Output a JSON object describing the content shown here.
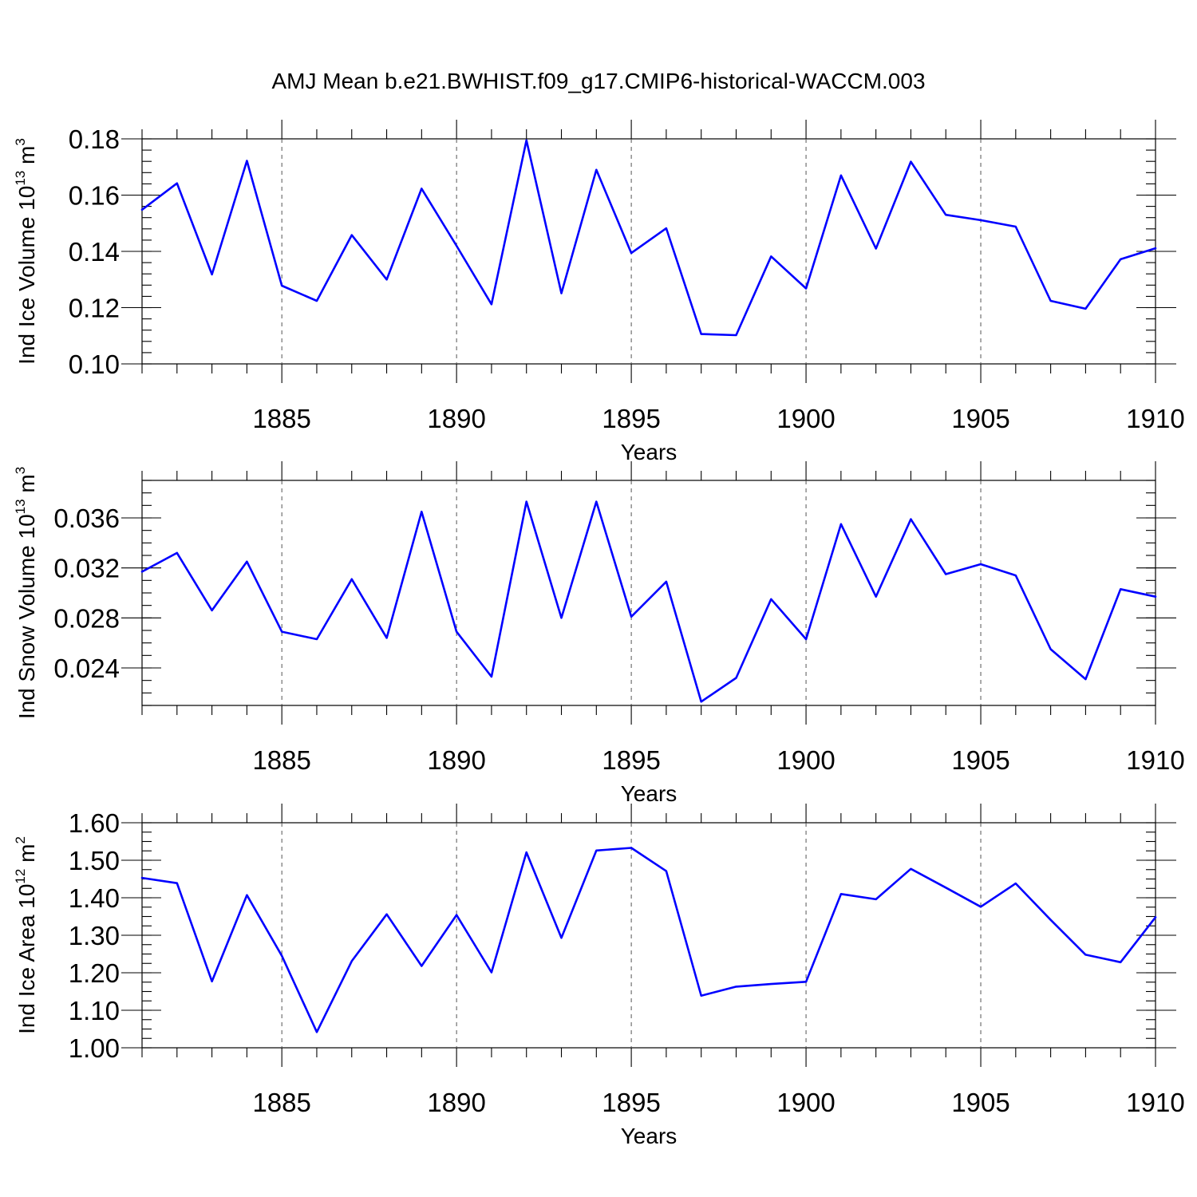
{
  "title": "AMJ Mean b.e21.BWHIST.f09_g17.CMIP6-historical-WACCM.003",
  "series_color": "#0000ff",
  "chart_data": [
    {
      "type": "line",
      "title": "AMJ Mean b.e21.BWHIST.f09_g17.CMIP6-historical-WACCM.003",
      "xlabel": "Years",
      "ylabel": {
        "main": "Ind Ice Volume 10",
        "sup": "13",
        "unit": " m",
        "unit_sup": "3"
      },
      "xlim": [
        1881,
        1910
      ],
      "ylim": [
        0.1,
        0.18
      ],
      "x_ticks": [
        "1885",
        "1890",
        "1895",
        "1900",
        "1905",
        "1910"
      ],
      "y_ticks": [
        "0.10",
        "0.12",
        "0.14",
        "0.16",
        "0.18"
      ],
      "grid": "vertical dashed lines at labeled x ticks",
      "x": [
        1881,
        1882,
        1883,
        1884,
        1885,
        1886,
        1887,
        1888,
        1889,
        1890,
        1891,
        1892,
        1893,
        1894,
        1895,
        1896,
        1897,
        1898,
        1899,
        1900,
        1901,
        1902,
        1903,
        1904,
        1905,
        1906,
        1907,
        1908,
        1909,
        1910
      ],
      "values": [
        0.1548,
        0.1642,
        0.1318,
        0.1722,
        0.1278,
        0.1224,
        0.1458,
        0.13,
        0.1623,
        0.142,
        0.1212,
        0.1795,
        0.1251,
        0.169,
        0.1394,
        0.1482,
        0.1106,
        0.1102,
        0.1382,
        0.1268,
        0.167,
        0.141,
        0.1719,
        0.153,
        0.1511,
        0.1488,
        0.1224,
        0.1196,
        0.1372,
        0.1411
      ]
    },
    {
      "type": "line",
      "xlabel": "Years",
      "ylabel": {
        "main": "Ind Snow Volume 10",
        "sup": "13",
        "unit": " m",
        "unit_sup": "3"
      },
      "xlim": [
        1881,
        1910
      ],
      "ylim": [
        0.021,
        0.039
      ],
      "x_ticks": [
        "1885",
        "1890",
        "1895",
        "1900",
        "1905",
        "1910"
      ],
      "y_ticks": [
        "0.024",
        "0.028",
        "0.032",
        "0.036"
      ],
      "grid": "vertical dashed lines at labeled x ticks",
      "x": [
        1881,
        1882,
        1883,
        1884,
        1885,
        1886,
        1887,
        1888,
        1889,
        1890,
        1891,
        1892,
        1893,
        1894,
        1895,
        1896,
        1897,
        1898,
        1899,
        1900,
        1901,
        1902,
        1903,
        1904,
        1905,
        1906,
        1907,
        1908,
        1909,
        1910
      ],
      "values": [
        0.0317,
        0.0332,
        0.0286,
        0.0325,
        0.0269,
        0.0263,
        0.0311,
        0.0264,
        0.0365,
        0.0269,
        0.0233,
        0.0373,
        0.028,
        0.0373,
        0.0281,
        0.0309,
        0.0213,
        0.0232,
        0.0295,
        0.0263,
        0.0355,
        0.0297,
        0.0359,
        0.0315,
        0.0323,
        0.0314,
        0.0255,
        0.0231,
        0.0303,
        0.0297
      ]
    },
    {
      "type": "line",
      "xlabel": "Years",
      "ylabel": {
        "main": "Ind Ice Area 10",
        "sup": "12",
        "unit": " m",
        "unit_sup": "2"
      },
      "xlim": [
        1881,
        1910
      ],
      "ylim": [
        1.0,
        1.6
      ],
      "x_ticks": [
        "1885",
        "1890",
        "1895",
        "1900",
        "1905",
        "1910"
      ],
      "y_ticks": [
        "1.00",
        "1.10",
        "1.20",
        "1.30",
        "1.40",
        "1.50",
        "1.60"
      ],
      "grid": "vertical dashed lines at labeled x ticks",
      "x": [
        1881,
        1882,
        1883,
        1884,
        1885,
        1886,
        1887,
        1888,
        1889,
        1890,
        1891,
        1892,
        1893,
        1894,
        1895,
        1896,
        1897,
        1898,
        1899,
        1900,
        1901,
        1902,
        1903,
        1904,
        1905,
        1906,
        1907,
        1908,
        1909,
        1910
      ],
      "values": [
        1.453,
        1.439,
        1.177,
        1.407,
        1.245,
        1.042,
        1.231,
        1.356,
        1.218,
        1.354,
        1.201,
        1.521,
        1.293,
        1.526,
        1.533,
        1.471,
        1.139,
        1.163,
        1.17,
        1.176,
        1.41,
        1.396,
        1.477,
        1.427,
        1.376,
        1.438,
        1.341,
        1.248,
        1.228,
        1.348
      ]
    }
  ]
}
